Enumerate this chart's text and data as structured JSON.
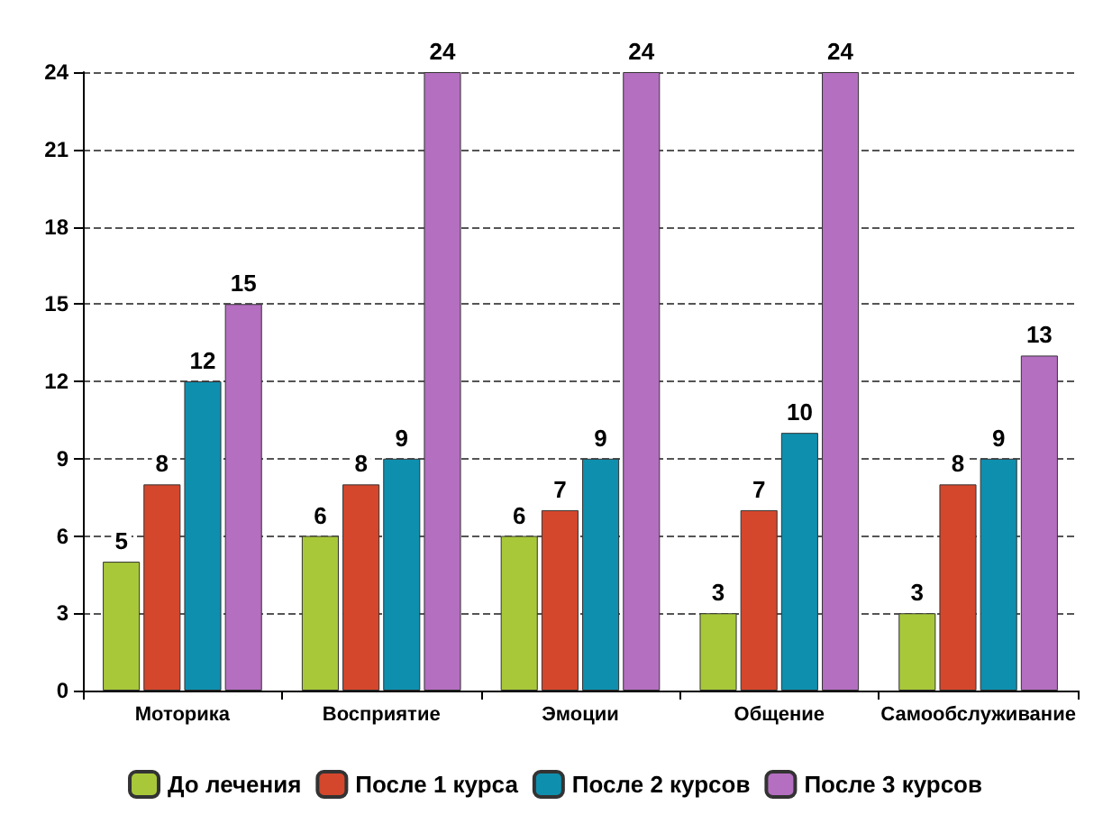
{
  "chart_data": {
    "type": "bar",
    "categories": [
      "Моторика",
      "Восприятие",
      "Эмоции",
      "Общение",
      "Самообслуживание"
    ],
    "series": [
      {
        "name": "До лечения",
        "color": "#a8c83a",
        "values": [
          5,
          6,
          6,
          3,
          3
        ]
      },
      {
        "name": "После 1 курса",
        "color": "#d4472c",
        "values": [
          8,
          8,
          7,
          7,
          8
        ]
      },
      {
        "name": "После 2 курсов",
        "color": "#0f8fae",
        "values": [
          12,
          9,
          9,
          10,
          9
        ]
      },
      {
        "name": "После 3 курсов",
        "color": "#b46fc0",
        "values": [
          15,
          24,
          24,
          24,
          13
        ]
      }
    ],
    "ylim": [
      0,
      24
    ],
    "yticks": [
      0,
      3,
      6,
      9,
      12,
      15,
      18,
      21,
      24
    ],
    "grid": "y",
    "legend": "bottom",
    "data_labels": true
  }
}
